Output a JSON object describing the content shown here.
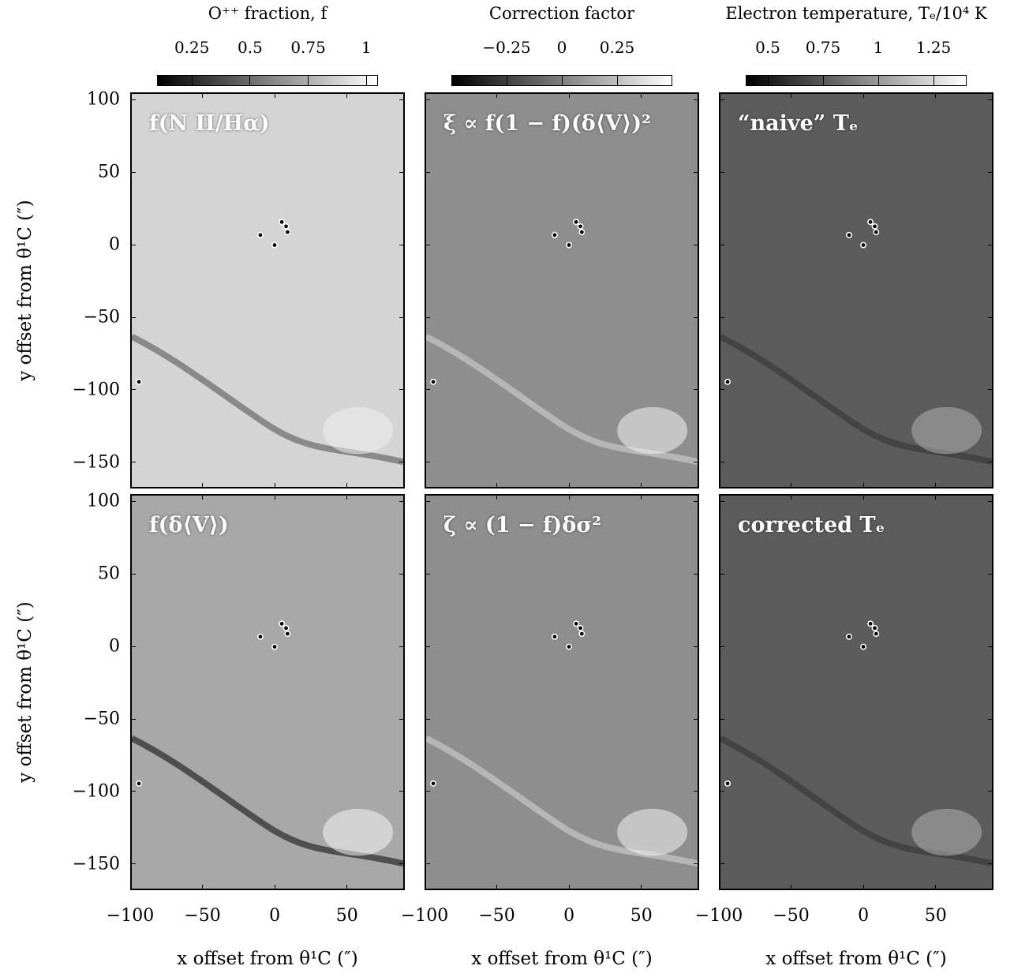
{
  "colorbars": [
    {
      "title": "O⁺⁺ fraction, f",
      "ticks": [
        "0.25",
        "0.5",
        "0.75",
        "1"
      ],
      "range": [
        0.1,
        1.05
      ],
      "tick_values": [
        0.25,
        0.5,
        0.75,
        1.0
      ]
    },
    {
      "title": "Correction factor",
      "ticks": [
        "−0.25",
        "0",
        "0.25"
      ],
      "range": [
        -0.5,
        0.5
      ],
      "tick_values": [
        -0.25,
        0,
        0.25
      ]
    },
    {
      "title": "Electron temperature, Tₑ/10⁴ K",
      "ticks": [
        "0.5",
        "0.75",
        "1",
        "1.25"
      ],
      "range": [
        0.4,
        1.4
      ],
      "tick_values": [
        0.5,
        0.75,
        1.0,
        1.25
      ]
    }
  ],
  "panels": [
    {
      "title": "f(N II/Hα)",
      "tone": "light"
    },
    {
      "title": "ξ ∝ f(1 − f)(δ⟨V⟩)²",
      "tone": "mid"
    },
    {
      "title": "“naive” Tₑ",
      "tone": "dark"
    },
    {
      "title": "f(δ⟨V⟩)",
      "tone": "mixed"
    },
    {
      "title": "ζ ∝ (1 − f)δσ²",
      "tone": "mid"
    },
    {
      "title": "corrected Tₑ",
      "tone": "dark"
    }
  ],
  "axes": {
    "ylabel": "y offset from θ¹C (″)",
    "xlabel": "x offset from θ¹C (″)",
    "yticks": [
      "100",
      "50",
      "0",
      "−50",
      "−100",
      "−150"
    ],
    "xticks": [
      "−100",
      "−50",
      "0",
      "50"
    ],
    "ytick_values": [
      100,
      50,
      0,
      -50,
      -100,
      -150
    ],
    "xtick_values": [
      -100,
      -50,
      0,
      50
    ],
    "xlim": [
      -100,
      90
    ],
    "ylim": [
      -168,
      105
    ]
  },
  "markers": {
    "stars": [
      [
        -10,
        7
      ],
      [
        5,
        16
      ],
      [
        8,
        13
      ],
      [
        9,
        9
      ],
      [
        0,
        0
      ]
    ],
    "offset_star": [
      -95,
      -95
    ]
  }
}
